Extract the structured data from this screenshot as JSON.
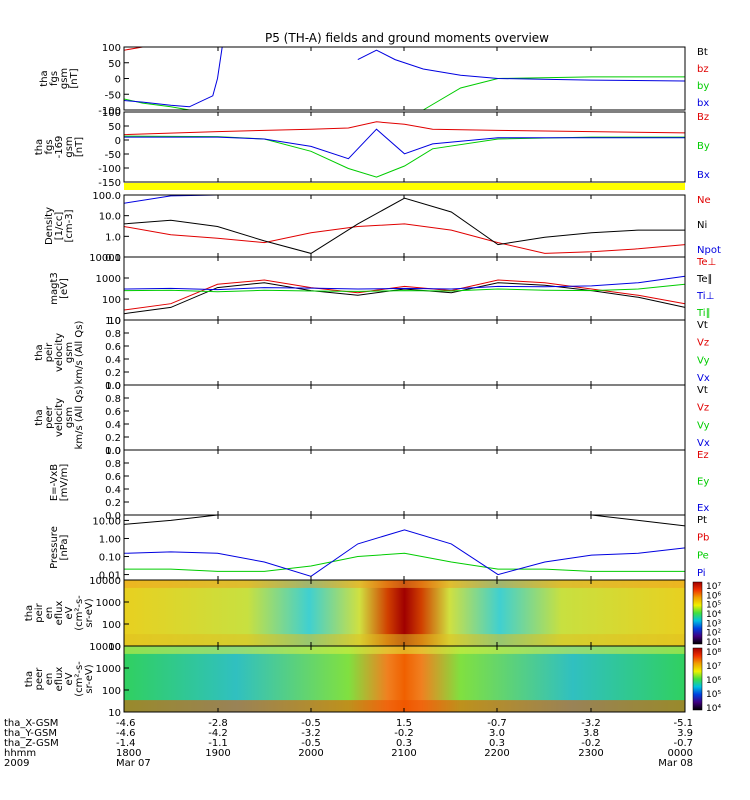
{
  "title": "P5 (TH-A) fields and ground moments overview",
  "colors": {
    "black": "#000000",
    "red": "#e00000",
    "green": "#00cc00",
    "blue": "#0000e0",
    "yellow": "#ffff00"
  },
  "chart_data": [
    {
      "id": "fgs",
      "type": "line",
      "ylabel": [
        "tha",
        "fgs",
        "gsm",
        "[nT]"
      ],
      "ylim": [
        -100,
        100
      ],
      "yticks": [
        "100",
        "50",
        "0",
        "-50",
        "-100"
      ],
      "legend": [
        {
          "label": "Bt",
          "color": "black"
        },
        {
          "label": "bz",
          "color": "red"
        },
        {
          "label": "by",
          "color": "green"
        },
        {
          "label": "bx",
          "color": "blue"
        }
      ],
      "x_hours": [
        0,
        0.2,
        0.5,
        0.7,
        0.95,
        1.0,
        1.05,
        2.35,
        2.5,
        2.7,
        2.9,
        3.2,
        3.6,
        4.0,
        5.0,
        6.0
      ],
      "series": [
        {
          "name": "bz",
          "color": "red",
          "values": [
            90,
            100,
            null,
            null,
            null,
            null,
            null,
            null,
            null,
            null,
            null,
            null,
            null,
            null,
            null,
            null
          ]
        },
        {
          "name": "by",
          "color": "green",
          "values": [
            -65,
            -78,
            -90,
            -100,
            null,
            null,
            null,
            null,
            null,
            null,
            null,
            -100,
            -30,
            0,
            5,
            5
          ]
        },
        {
          "name": "bx",
          "color": "blue",
          "values": [
            -70,
            -75,
            -85,
            -90,
            -55,
            0,
            100,
            null,
            60,
            90,
            60,
            30,
            10,
            0,
            -5,
            -8
          ]
        }
      ]
    },
    {
      "id": "fgs169",
      "type": "line",
      "ylabel": [
        "tha",
        "fgs",
        "-169",
        "gsm",
        "[nT]"
      ],
      "ylim": [
        -175,
        110
      ],
      "yticks": [
        "100",
        "50",
        "0",
        "-50",
        "-100",
        "-150"
      ],
      "legend": [
        {
          "label": "Bz",
          "color": "red"
        },
        {
          "label": "By",
          "color": "green"
        },
        {
          "label": "Bx",
          "color": "blue"
        }
      ],
      "x_hours": [
        0,
        1.0,
        1.5,
        2.0,
        2.4,
        2.7,
        3.0,
        3.3,
        4.0,
        5.0,
        6.0
      ],
      "series": [
        {
          "name": "Bz",
          "color": "red",
          "values": [
            18,
            30,
            35,
            40,
            45,
            70,
            60,
            40,
            35,
            30,
            25
          ]
        },
        {
          "name": "By",
          "color": "green",
          "values": [
            12,
            10,
            0,
            -50,
            -120,
            -155,
            -110,
            -40,
            0,
            8,
            8
          ]
        },
        {
          "name": "Bx",
          "color": "blue",
          "values": [
            8,
            8,
            0,
            -30,
            -80,
            40,
            -60,
            -20,
            5,
            5,
            5
          ]
        }
      ]
    },
    {
      "id": "density",
      "type": "line",
      "scale": "log",
      "ylabel": [
        "Density",
        "[1/cc]",
        "[cm-3]"
      ],
      "ylim": [
        0.1,
        100
      ],
      "yticks": [
        "100.0",
        "10.0",
        "1.0",
        "0.1"
      ],
      "legend": [
        {
          "label": "Ne",
          "color": "red"
        },
        {
          "label": "Ni",
          "color": "black"
        },
        {
          "label": "Npot",
          "color": "blue"
        }
      ],
      "x_hours": [
        0,
        0.5,
        1.0,
        1.5,
        2.0,
        2.5,
        3.0,
        3.5,
        4.0,
        4.5,
        5.0,
        5.5,
        6.0
      ],
      "series": [
        {
          "name": "Ne",
          "color": "red",
          "values": [
            3,
            1.2,
            0.8,
            0.5,
            1.5,
            3,
            4,
            2,
            0.5,
            0.15,
            0.18,
            0.25,
            0.4
          ]
        },
        {
          "name": "Ni",
          "color": "black",
          "values": [
            4,
            6,
            3,
            0.6,
            0.15,
            4,
            70,
            15,
            0.4,
            0.9,
            1.5,
            2,
            2
          ]
        },
        {
          "name": "Npot",
          "color": "blue",
          "values": [
            40,
            90,
            130,
            null,
            null,
            null,
            null,
            null,
            null,
            null,
            null,
            null,
            null
          ]
        }
      ]
    },
    {
      "id": "temperature",
      "type": "line",
      "scale": "log",
      "ylabel": [
        "magt3",
        "[eV]"
      ],
      "ylim": [
        10,
        10000
      ],
      "yticks": [
        "10000",
        "1000",
        "100",
        "10"
      ],
      "legend": [
        {
          "label": "Te⊥",
          "color": "red"
        },
        {
          "label": "Te∥",
          "color": "black"
        },
        {
          "label": "Ti⊥",
          "color": "blue"
        },
        {
          "label": "Ti∥",
          "color": "green"
        }
      ],
      "x_hours": [
        0,
        0.5,
        1.0,
        1.5,
        2.0,
        2.5,
        3.0,
        3.5,
        4.0,
        4.5,
        5.0,
        5.5,
        6.0
      ],
      "series": [
        {
          "name": "Te⊥",
          "color": "red",
          "values": [
            30,
            60,
            500,
            800,
            350,
            200,
            400,
            250,
            800,
            600,
            300,
            150,
            60
          ]
        },
        {
          "name": "Te∥",
          "color": "black",
          "values": [
            20,
            40,
            350,
            600,
            250,
            150,
            300,
            200,
            600,
            450,
            250,
            120,
            40
          ]
        },
        {
          "name": "Ti⊥",
          "color": "blue",
          "values": [
            300,
            320,
            280,
            350,
            330,
            300,
            320,
            300,
            400,
            380,
            420,
            600,
            1200
          ]
        },
        {
          "name": "Ti∥",
          "color": "green",
          "values": [
            250,
            260,
            220,
            260,
            240,
            230,
            250,
            240,
            300,
            260,
            250,
            300,
            500
          ]
        }
      ]
    },
    {
      "id": "peir_vel",
      "type": "line",
      "ylabel": [
        "tha",
        "peir",
        "velocity",
        "gsm",
        "km/s (All Qs)"
      ],
      "ylim": [
        0,
        1
      ],
      "yticks": [
        "1.0",
        "0.8",
        "0.6",
        "0.4",
        "0.2",
        "0.0"
      ],
      "legend": [
        {
          "label": "Vt",
          "color": "black"
        },
        {
          "label": "Vz",
          "color": "red"
        },
        {
          "label": "Vy",
          "color": "green"
        },
        {
          "label": "Vx",
          "color": "blue"
        }
      ],
      "series": []
    },
    {
      "id": "peer_vel",
      "type": "line",
      "ylabel": [
        "tha",
        "peer",
        "velocity",
        "gsm",
        "km/s (All Qs)"
      ],
      "ylim": [
        0,
        1
      ],
      "yticks": [
        "1.0",
        "0.8",
        "0.6",
        "0.4",
        "0.2",
        "0.0"
      ],
      "legend": [
        {
          "label": "Vt",
          "color": "black"
        },
        {
          "label": "Vz",
          "color": "red"
        },
        {
          "label": "Vy",
          "color": "green"
        },
        {
          "label": "Vx",
          "color": "blue"
        }
      ],
      "series": []
    },
    {
      "id": "efield",
      "type": "line",
      "ylabel": [
        "E=-VxB",
        "[mV/m]"
      ],
      "ylim": [
        0,
        1
      ],
      "yticks": [
        "1.0",
        "0.8",
        "0.6",
        "0.4",
        "0.2",
        "0.0"
      ],
      "legend": [
        {
          "label": "Ez",
          "color": "red"
        },
        {
          "label": "Ey",
          "color": "green"
        },
        {
          "label": "Ex",
          "color": "blue"
        }
      ],
      "series": []
    },
    {
      "id": "pressure",
      "type": "line",
      "scale": "log",
      "ylabel": [
        "Pressure",
        "[nPa]"
      ],
      "ylim": [
        0.005,
        20
      ],
      "yticks": [
        "10.00",
        "1.00",
        "0.10",
        "0.01"
      ],
      "legend": [
        {
          "label": "Pt",
          "color": "black"
        },
        {
          "label": "Pb",
          "color": "red"
        },
        {
          "label": "Pe",
          "color": "green"
        },
        {
          "label": "Pi",
          "color": "blue"
        }
      ],
      "x_hours": [
        0,
        0.5,
        1.0,
        1.5,
        2.0,
        2.5,
        3.0,
        3.5,
        4.0,
        4.5,
        5.0,
        5.5,
        6.0
      ],
      "series": [
        {
          "name": "Pt",
          "color": "black",
          "values": [
            6,
            10,
            20,
            null,
            null,
            null,
            null,
            null,
            null,
            null,
            20,
            10,
            5
          ]
        },
        {
          "name": "Pe",
          "color": "green",
          "values": [
            0.02,
            0.02,
            0.015,
            0.015,
            0.03,
            0.1,
            0.15,
            0.05,
            0.02,
            0.02,
            0.015,
            0.015,
            0.015
          ]
        },
        {
          "name": "Pi",
          "color": "blue",
          "values": [
            0.15,
            0.18,
            0.15,
            0.05,
            0.008,
            0.5,
            3,
            0.5,
            0.01,
            0.05,
            0.12,
            0.15,
            0.3
          ]
        }
      ]
    },
    {
      "id": "peir_spec",
      "type": "heatmap",
      "ylabel": [
        "tha",
        "peir",
        "en",
        "eflux",
        "eV",
        "(cm²-s-",
        "sr-eV)"
      ],
      "ylim": [
        10,
        10000
      ],
      "yticks": [
        "10000",
        "1000",
        "100",
        "10"
      ],
      "colorbar_ticks": [
        "10⁷",
        "10⁶",
        "10⁵",
        "10⁴",
        "10³",
        "10²",
        "10¹"
      ]
    },
    {
      "id": "peer_spec",
      "type": "heatmap",
      "ylabel": [
        "tha",
        "peer",
        "en",
        "eflux",
        "eV",
        "(cm²-s-",
        "sr-eV)"
      ],
      "ylim": [
        10,
        10000
      ],
      "yticks": [
        "10000",
        "1000",
        "100",
        "10"
      ],
      "colorbar_ticks": [
        "10⁸",
        "10⁷",
        "10⁶",
        "10⁵",
        "10⁴"
      ]
    }
  ],
  "xaxis": {
    "rows": [
      {
        "label": "tha_X-GSM",
        "values": [
          "-4.6",
          "-2.8",
          "-0.5",
          "1.5",
          "-0.7",
          "-3.2",
          "-5.1"
        ]
      },
      {
        "label": "tha_Y-GSM",
        "values": [
          "-4.6",
          "-4.2",
          "-3.2",
          "-0.2",
          "3.0",
          "3.8",
          "3.9"
        ]
      },
      {
        "label": "tha_Z-GSM",
        "values": [
          "-1.4",
          "-1.1",
          "-0.5",
          "0.3",
          "0.3",
          "-0.2",
          "-0.7"
        ]
      },
      {
        "label": "hhmm",
        "values": [
          "1800",
          "1900",
          "2000",
          "2100",
          "2200",
          "2300",
          "0000"
        ]
      },
      {
        "label": "2009",
        "values": [
          "Mar 07",
          "",
          "",
          "",
          "",
          "",
          "Mar 08"
        ]
      }
    ]
  }
}
